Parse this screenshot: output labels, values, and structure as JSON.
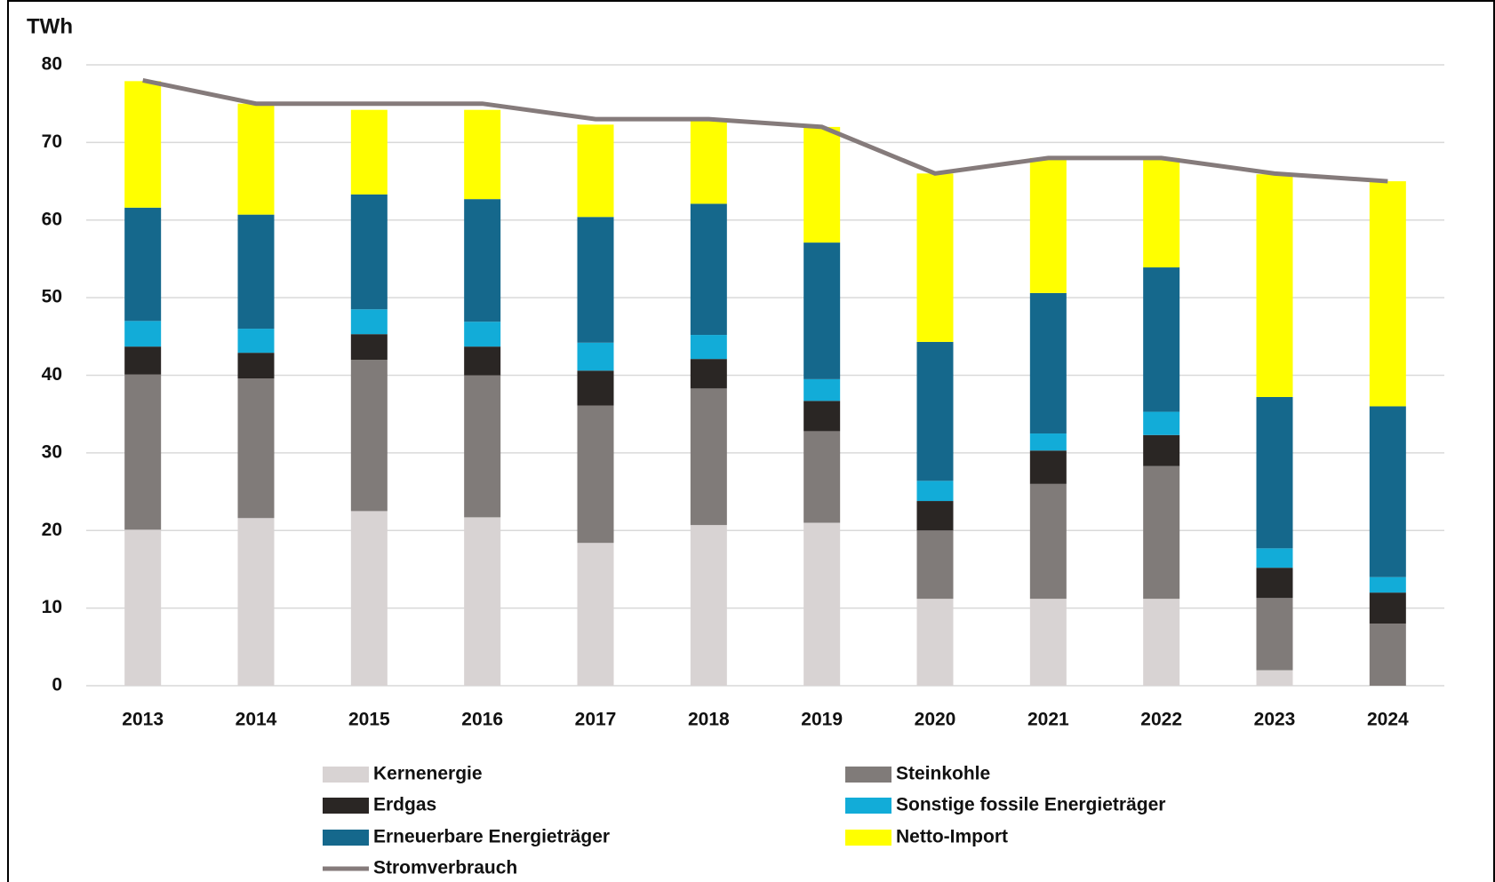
{
  "chart_data": {
    "type": "bar",
    "y_label": "TWh",
    "categories": [
      "2013",
      "2014",
      "2015",
      "2016",
      "2017",
      "2018",
      "2019",
      "2020",
      "2021",
      "2022",
      "2023",
      "2024"
    ],
    "stacked": true,
    "series": [
      {
        "name": "Kernenergie",
        "color": "#d8d3d3",
        "values": [
          20.1,
          21.6,
          22.5,
          21.7,
          18.4,
          20.7,
          21.0,
          11.2,
          11.2,
          11.2,
          2.0,
          0
        ]
      },
      {
        "name": "Steinkohle",
        "color": "#807b79",
        "values": [
          20.0,
          18.0,
          19.5,
          18.3,
          17.7,
          17.6,
          11.8,
          8.8,
          14.8,
          17.1,
          9.3,
          8.0
        ]
      },
      {
        "name": "Erdgas",
        "color": "#2a2624",
        "values": [
          3.6,
          3.3,
          3.3,
          3.7,
          4.5,
          3.8,
          3.9,
          3.8,
          4.3,
          4.0,
          3.9,
          4.0
        ]
      },
      {
        "name": "Sonstige fossile Energieträger",
        "color": "#12acd8",
        "values": [
          3.3,
          3.1,
          3.2,
          3.2,
          3.6,
          3.1,
          2.8,
          2.6,
          2.2,
          3.0,
          2.5,
          2.0
        ]
      },
      {
        "name": "Erneuerbare Energieträger",
        "color": "#15688c",
        "values": [
          14.6,
          14.7,
          14.8,
          15.8,
          16.2,
          16.9,
          17.6,
          17.9,
          18.1,
          18.6,
          19.5,
          22.0
        ]
      },
      {
        "name": "Netto-Import",
        "color": "#ffff00",
        "values": [
          16.3,
          14.3,
          10.9,
          11.5,
          11.9,
          10.7,
          14.9,
          21.7,
          17.4,
          14.1,
          28.7,
          29.0
        ]
      },
      {
        "name": "Stromverbrauch",
        "color": "#857b7b",
        "type": "line",
        "values": [
          78,
          75,
          75,
          75,
          73,
          73,
          72,
          66,
          68,
          68,
          66,
          65
        ]
      }
    ],
    "ylim": [
      0,
      80
    ],
    "yticks": [
      0,
      10,
      20,
      30,
      40,
      50,
      60,
      70,
      80
    ],
    "grid": true
  }
}
